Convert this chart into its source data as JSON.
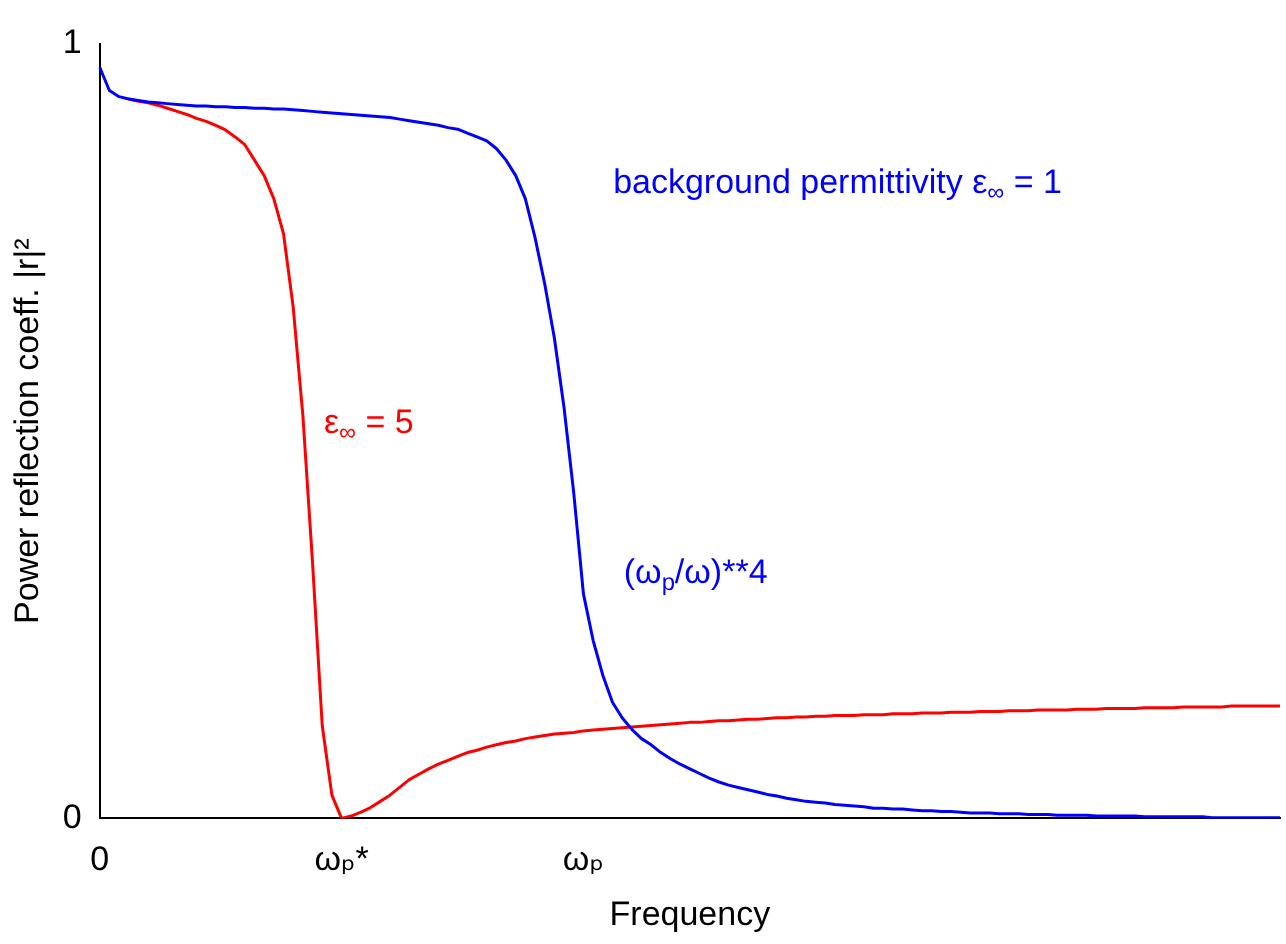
{
  "chart_data": {
    "type": "line",
    "xlabel": "Frequency",
    "ylabel": "Power reflection coeff. |r|²",
    "categories": [
      "0",
      null,
      null,
      null,
      null,
      null,
      null,
      null,
      null,
      null,
      null,
      null,
      null,
      null,
      null,
      null,
      null,
      null,
      null,
      null,
      null,
      null,
      null,
      null,
      null,
      "ωₚ*",
      null,
      null,
      null,
      null,
      null,
      null,
      null,
      null,
      null,
      null,
      null,
      null,
      null,
      null,
      null,
      null,
      null,
      null,
      null,
      null,
      null,
      null,
      null,
      null,
      "ωₚ",
      null,
      null,
      null,
      null,
      null,
      null,
      null,
      null,
      null,
      null,
      null,
      null,
      null,
      null,
      null,
      null,
      null,
      null,
      null,
      null,
      null,
      null,
      null,
      null,
      null,
      null,
      null,
      null,
      null,
      null,
      null,
      null,
      null,
      null,
      null,
      null,
      null,
      null,
      null,
      null,
      null,
      null,
      null,
      null,
      null,
      null,
      null,
      null,
      null,
      null,
      null,
      null,
      null,
      null,
      null,
      null,
      null,
      null,
      null,
      null,
      null,
      null,
      null,
      null,
      null,
      null,
      null,
      null,
      null,
      null,
      null,
      null
    ],
    "ylim": [
      0,
      1
    ],
    "yticks": [
      0,
      1
    ],
    "grid": false,
    "legend": false,
    "marker": "none",
    "line_style": "solid",
    "series": [
      {
        "color": "#0000ff",
        "values": [
          0.97,
          0.94,
          0.932,
          0.929,
          0.927,
          0.925,
          0.924,
          0.923,
          0.922,
          0.921,
          0.92,
          0.92,
          0.919,
          0.919,
          0.918,
          0.918,
          0.917,
          0.917,
          0.916,
          0.916,
          0.915,
          0.914,
          0.913,
          0.912,
          0.911,
          0.91,
          0.909,
          0.908,
          0.907,
          0.906,
          0.905,
          0.903,
          0.901,
          0.899,
          0.897,
          0.895,
          0.892,
          0.89,
          0.885,
          0.88,
          0.875,
          0.865,
          0.85,
          0.83,
          0.8,
          0.75,
          0.69,
          0.62,
          0.53,
          0.42,
          0.29,
          0.23,
          0.185,
          0.15,
          0.13,
          0.115,
          0.103,
          0.095,
          0.085,
          0.077,
          0.07,
          0.064,
          0.058,
          0.052,
          0.047,
          0.043,
          0.04,
          0.037,
          0.034,
          0.031,
          0.029,
          0.026,
          0.024,
          0.022,
          0.021,
          0.02,
          0.018,
          0.017,
          0.016,
          0.015,
          0.013,
          0.013,
          0.012,
          0.012,
          0.011,
          0.01,
          0.01,
          0.009,
          0.009,
          0.008,
          0.007,
          0.007,
          0.007,
          0.006,
          0.006,
          0.006,
          0.005,
          0.005,
          0.005,
          0.004,
          0.004,
          0.004,
          0.004,
          0.003,
          0.003,
          0.003,
          0.003,
          0.003,
          0.002,
          0.002,
          0.002,
          0.002,
          0.002,
          0.002,
          0.002,
          0.001,
          0.001,
          0.001,
          0.001,
          0.001,
          0.001,
          0.001,
          0.001
        ]
      },
      {
        "color": "#ff0000",
        "values": [
          null,
          null,
          null,
          0.929,
          0.926,
          0.924,
          0.921,
          0.917,
          0.913,
          0.909,
          0.904,
          0.9,
          0.895,
          0.889,
          0.88,
          0.87,
          0.85,
          0.83,
          0.8,
          0.755,
          0.66,
          0.52,
          0.33,
          0.12,
          0.03,
          0.0,
          0.003,
          0.008,
          0.014,
          0.022,
          0.03,
          0.04,
          0.05,
          0.057,
          0.064,
          0.07,
          0.075,
          0.08,
          0.085,
          0.088,
          0.092,
          0.095,
          0.098,
          0.1,
          0.103,
          0.105,
          0.107,
          0.109,
          0.11,
          0.111,
          0.113,
          0.114,
          0.115,
          0.116,
          0.117,
          0.118,
          0.119,
          0.12,
          0.121,
          0.122,
          0.123,
          0.124,
          0.124,
          0.125,
          0.126,
          0.126,
          0.127,
          0.128,
          0.128,
          0.129,
          0.13,
          0.13,
          0.131,
          0.131,
          0.132,
          0.132,
          0.133,
          0.133,
          0.133,
          0.134,
          0.134,
          0.134,
          0.135,
          0.135,
          0.135,
          0.136,
          0.136,
          0.136,
          0.137,
          0.137,
          0.137,
          0.138,
          0.138,
          0.138,
          0.139,
          0.139,
          0.139,
          0.14,
          0.14,
          0.14,
          0.14,
          0.141,
          0.141,
          0.141,
          0.142,
          0.142,
          0.142,
          0.142,
          0.143,
          0.143,
          0.143,
          0.143,
          0.144,
          0.144,
          0.144,
          0.144,
          0.144,
          0.145,
          0.145,
          0.145,
          0.145,
          0.145,
          0.145
        ]
      }
    ],
    "annotations": [
      "background permittivity ε$_{∞}$ = 1",
      "ε$_{∞}$ = 5",
      "(ω$_{p}$/ω)**4"
    ]
  }
}
